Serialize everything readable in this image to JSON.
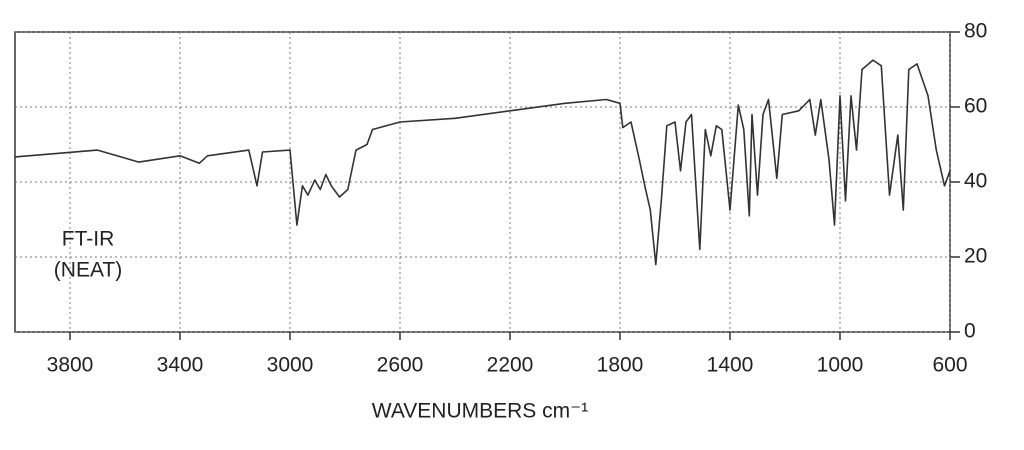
{
  "chart_data": {
    "type": "line",
    "annotation": [
      "FT-IR",
      "(NEAT)"
    ],
    "x_label": "WAVENUMBERS cm⁻¹",
    "xlim": [
      4000,
      600
    ],
    "xticks": [
      3800,
      3400,
      3000,
      2600,
      2200,
      1800,
      1400,
      1000,
      600
    ],
    "ylim": [
      0,
      80
    ],
    "yticks": [
      0,
      20,
      40,
      60,
      80
    ],
    "grid": true,
    "series": [
      {
        "color": "#333333",
        "x": [
          4000,
          3700,
          3550,
          3400,
          3330,
          3300,
          3150,
          3120,
          3100,
          3000,
          2975,
          2955,
          2935,
          2910,
          2890,
          2870,
          2850,
          2820,
          2790,
          2760,
          2720,
          2700,
          2600,
          2400,
          2200,
          2000,
          1850,
          1800,
          1790,
          1760,
          1730,
          1710,
          1690,
          1670,
          1650,
          1630,
          1600,
          1580,
          1560,
          1540,
          1510,
          1490,
          1470,
          1450,
          1430,
          1400,
          1370,
          1350,
          1330,
          1320,
          1300,
          1280,
          1260,
          1230,
          1210,
          1150,
          1110,
          1090,
          1070,
          1040,
          1020,
          1000,
          980,
          960,
          940,
          920,
          880,
          850,
          820,
          790,
          770,
          750,
          720,
          680,
          650,
          620,
          600
        ],
        "values": [
          46.7,
          48.5,
          45.3,
          47,
          45,
          47,
          48.5,
          39,
          48,
          48.5,
          28.5,
          39,
          36.5,
          40.5,
          38,
          42,
          39,
          36,
          38,
          48.5,
          50,
          54,
          56,
          57,
          59,
          61,
          62,
          61,
          54.5,
          56,
          46,
          39,
          32.5,
          18,
          35,
          55,
          56,
          43,
          56,
          58,
          22,
          54,
          47,
          55,
          54,
          32.5,
          60.5,
          54,
          31,
          58,
          36.5,
          58,
          62,
          41,
          58,
          59,
          62,
          52.5,
          62,
          46,
          28.5,
          63,
          35,
          63,
          48.5,
          70,
          72.5,
          71,
          36.5,
          52.5,
          32.5,
          70,
          71.5,
          63,
          48.5,
          39,
          43
        ]
      }
    ]
  }
}
